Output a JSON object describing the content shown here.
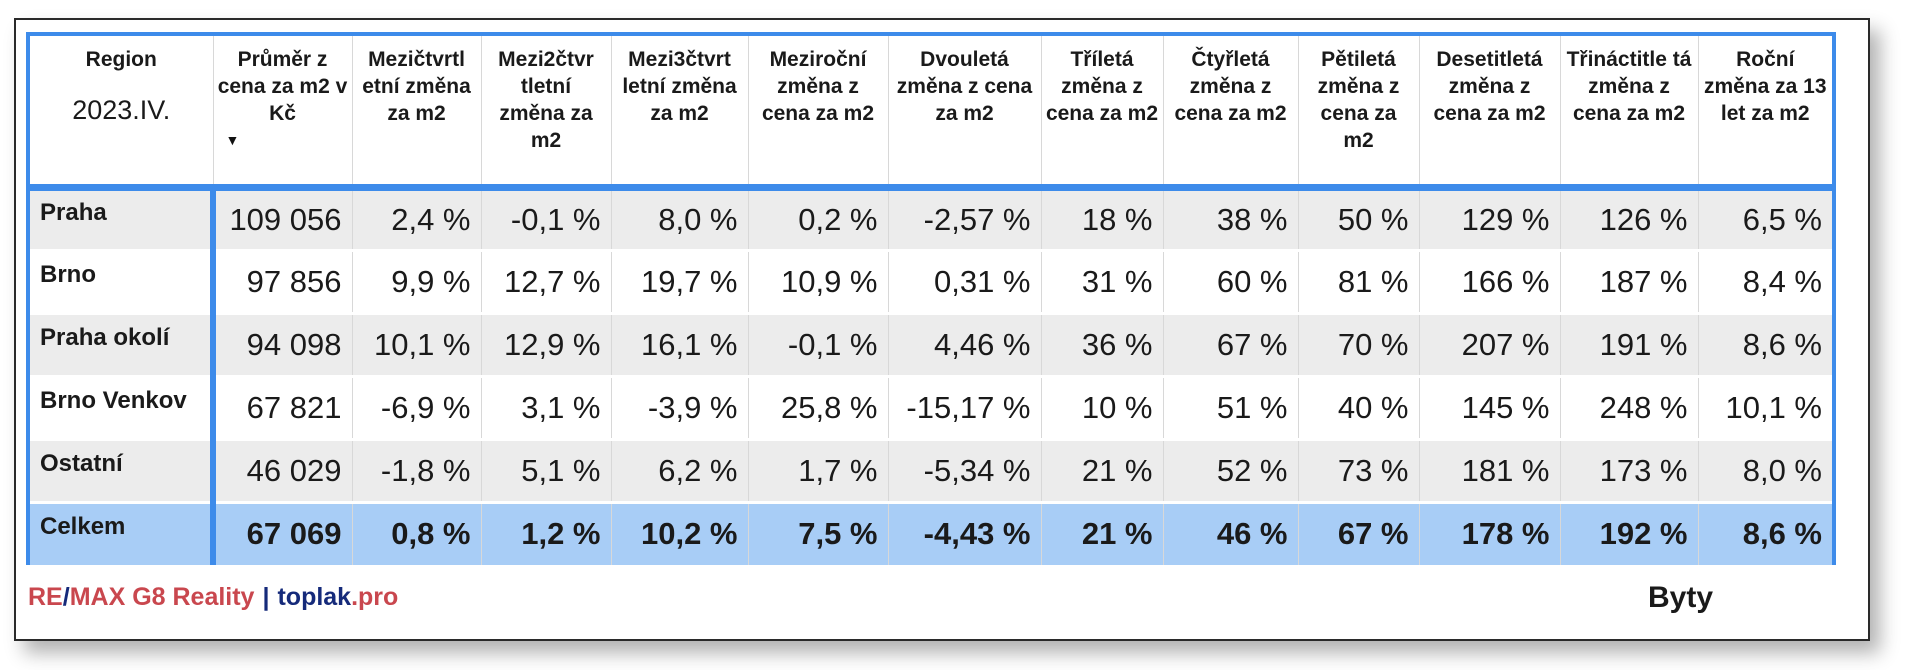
{
  "header": {
    "region_label": "Region",
    "period": "2023.IV.",
    "columns": [
      "Průměr z cena za m2 v Kč",
      "Mezičtvrtl etní změna za m2",
      "Mezi2čtvr tletní změna za m2",
      "Mezi3čtvrt letní změna za m2",
      "Meziroční změna z cena za m2",
      "Dvouletá změna z cena za m2",
      "Tříletá změna z cena za m2",
      "Čtyřletá změna z cena za m2",
      "Pětiletá změna z cena za m2",
      "Desetitletá změna z cena za m2",
      "Třináctitle tá změna z cena za m2",
      "Roční změna za 13 let za m2"
    ],
    "sort_icon": "triangle-down-icon"
  },
  "rows": [
    {
      "region": "Praha",
      "values": [
        "109 056",
        "2,4 %",
        "-0,1 %",
        "8,0 %",
        "0,2 %",
        "-2,57 %",
        "18 %",
        "38 %",
        "50 %",
        "129 %",
        "126 %",
        "6,5 %"
      ]
    },
    {
      "region": "Brno",
      "values": [
        "97 856",
        "9,9 %",
        "12,7 %",
        "19,7 %",
        "10,9 %",
        "0,31 %",
        "31 %",
        "60 %",
        "81 %",
        "166 %",
        "187 %",
        "8,4 %"
      ]
    },
    {
      "region": "Praha okolí",
      "values": [
        "94 098",
        "10,1 %",
        "12,9 %",
        "16,1 %",
        "-0,1 %",
        "4,46 %",
        "36 %",
        "67 %",
        "70 %",
        "207 %",
        "191 %",
        "8,6 %"
      ]
    },
    {
      "region": "Brno Venkov",
      "values": [
        "67 821",
        "-6,9 %",
        "3,1 %",
        "-3,9 %",
        "25,8 %",
        "-15,17 %",
        "10 %",
        "51 %",
        "40 %",
        "145 %",
        "248 %",
        "10,1 %"
      ]
    },
    {
      "region": "Ostatní",
      "values": [
        "46 029",
        "-1,8 %",
        "5,1 %",
        "6,2 %",
        "1,7 %",
        "-5,34 %",
        "21 %",
        "52 %",
        "73 %",
        "181 %",
        "173 %",
        "8,0 %"
      ]
    },
    {
      "region": "Celkem",
      "values": [
        "67 069",
        "0,8 %",
        "1,2 %",
        "10,2 %",
        "7,5 %",
        "-4,43 %",
        "21 %",
        "46 %",
        "67 %",
        "178 %",
        "192 %",
        "8,6 %"
      ]
    }
  ],
  "footer": {
    "brand_re": "RE",
    "brand_slash": "/",
    "brand_max": "MAX G8 Reality",
    "separator": "|",
    "brand_toplak": "toplak",
    "brand_pro": ".pro",
    "type_label": "Byty"
  },
  "colors": {
    "accent_blue": "#3d8bea",
    "total_row": "#a8cdf6",
    "brand_red": "#c9474e",
    "brand_navy": "#152a7a"
  }
}
